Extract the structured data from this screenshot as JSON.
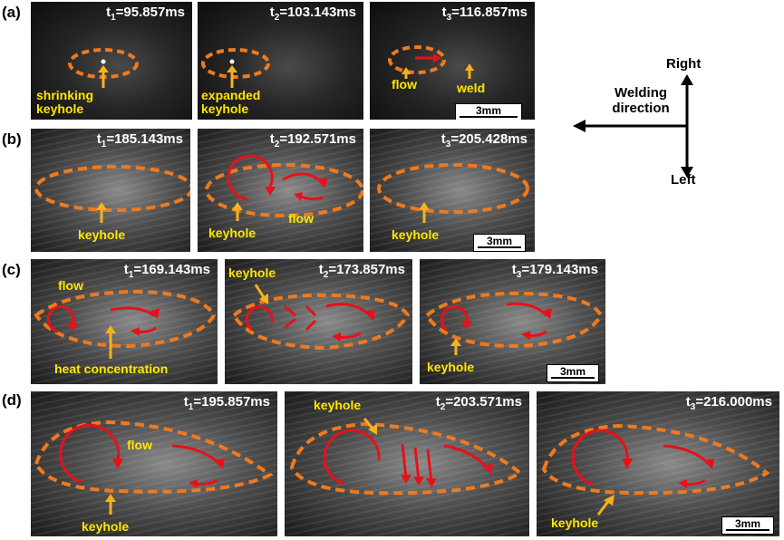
{
  "rows": [
    {
      "label": "(a)",
      "panels": [
        {
          "time_var": "t",
          "time_sub": "1",
          "time_val": "=95.857ms",
          "annotations": [
            "shrinking keyhole"
          ]
        },
        {
          "time_var": "t",
          "time_sub": "2",
          "time_val": "=103.143ms",
          "annotations": [
            "expanded keyhole"
          ]
        },
        {
          "time_var": "t",
          "time_sub": "3",
          "time_val": "=116.857ms",
          "annotations": [
            "flow",
            "weld"
          ],
          "scale": "3mm"
        }
      ]
    },
    {
      "label": "(b)",
      "panels": [
        {
          "time_var": "t",
          "time_sub": "1",
          "time_val": "=185.143ms",
          "annotations": [
            "keyhole"
          ]
        },
        {
          "time_var": "t",
          "time_sub": "2",
          "time_val": "=192.571ms",
          "annotations": [
            "keyhole",
            "flow"
          ]
        },
        {
          "time_var": "t",
          "time_sub": "3",
          "time_val": "=205.428ms",
          "annotations": [
            "keyhole"
          ],
          "scale": "3mm"
        }
      ]
    },
    {
      "label": "(c)",
      "panels": [
        {
          "time_var": "t",
          "time_sub": "1",
          "time_val": "=169.143ms",
          "annotations": [
            "flow",
            "heat concentration"
          ]
        },
        {
          "time_var": "t",
          "time_sub": "2",
          "time_val": "=173.857ms",
          "annotations": [
            "keyhole"
          ]
        },
        {
          "time_var": "t",
          "time_sub": "3",
          "time_val": "=179.143ms",
          "annotations": [
            "keyhole"
          ],
          "scale": "3mm"
        }
      ]
    },
    {
      "label": "(d)",
      "panels": [
        {
          "time_var": "t",
          "time_sub": "1",
          "time_val": "=195.857ms",
          "annotations": [
            "flow",
            "keyhole"
          ]
        },
        {
          "time_var": "t",
          "time_sub": "2",
          "time_val": "=203.571ms",
          "annotations": [
            "keyhole"
          ]
        },
        {
          "time_var": "t",
          "time_sub": "3",
          "time_val": "=216.000ms",
          "annotations": [
            "keyhole"
          ],
          "scale": "3mm"
        }
      ]
    }
  ],
  "compass": {
    "right": "Right",
    "left": "Left",
    "welding_direction": "Welding direction"
  },
  "colors": {
    "pool_outline": "#ee7a1f",
    "flow_arrow": "#e8101a",
    "annotation": "#ffe600",
    "pointer": "#f7b21a"
  }
}
